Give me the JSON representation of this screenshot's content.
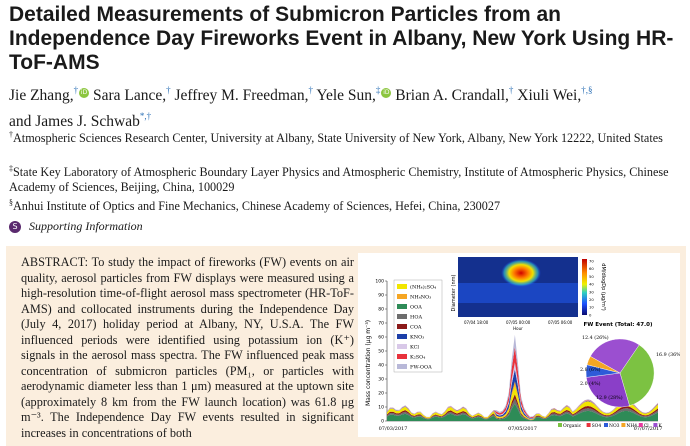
{
  "paper": {
    "title": "Detailed Measurements of Submicron Particles from an Independence Day Fireworks Event in Albany, New York Using HR-ToF-AMS",
    "authors": [
      {
        "name": "Jie Zhang,",
        "aff": "†",
        "orcid": true
      },
      {
        "name": "Sara Lance,",
        "aff": "†",
        "orcid": false
      },
      {
        "name": "Jeffrey M. Freedman,",
        "aff": "†",
        "orcid": false
      },
      {
        "name": "Yele Sun,",
        "aff": "‡",
        "orcid": true
      },
      {
        "name": "Brian A. Crandall,",
        "aff": "†",
        "orcid": false
      },
      {
        "name": "Xiuli Wei,",
        "aff": "†,§",
        "orcid": false
      },
      {
        "name": "and James J. Schwab",
        "aff": "*,†",
        "orcid": false
      }
    ],
    "affiliations": [
      {
        "mark": "†",
        "text": "Atmospheric Sciences Research Center, University at Albany, State University of New York, Albany, New York 12222, United States"
      },
      {
        "mark": "‡",
        "text": "State Key Laboratory of Atmospheric Boundary Layer Physics and Atmospheric Chemistry, Institute of Atmospheric Physics, Chinese Academy of Sciences, Beijing, China, 100029"
      },
      {
        "mark": "§",
        "text": "Anhui Institute of Optics and Fine Mechanics, Chinese Academy of Sciences, Hefei, China, 230027"
      }
    ],
    "supporting_information": "Supporting Information",
    "si_icon": "supporting-info-icon",
    "abstract_label": "ABSTRACT:",
    "abstract_text": "To study the impact of fireworks (FW) events on air quality, aerosol particles from FW displays were measured using a high-resolution time-of-flight aerosol mass spectrometer (HR-ToF-AMS) and collocated instruments during the Independence Day (July 4, 2017) holiday period at Albany, NY, U.S.A. The FW influenced periods were identified using potassium ion (K⁺) signals in the aerosol mass spectra. The FW influenced peak mass concentration of submicron particles (PM₁, or particles with aerodynamic diameter less than 1 μm) measured at the uptown site (approximately 8 km from the FW launch location) was 61.8 μg m⁻³. The Independence Day FW events resulted in significant increases in concentrations of both",
    "abstract_box_color": "#fbeede"
  },
  "toc_graphic": {
    "ylabel": "Mass concentration (μg m⁻³)",
    "yticks": [
      "0",
      "10",
      "20",
      "30",
      "40",
      "50",
      "60",
      "70",
      "80",
      "90",
      "100"
    ],
    "xticks": [
      "07/03/2017",
      "07/05/2017",
      "07/07/2017"
    ],
    "legend": [
      "(NH₄)₂SO₄",
      "NH₄NO₃",
      "OOA",
      "HOA",
      "COA",
      "KNO₃",
      "KCl",
      "K₂SO₄",
      "FW-OOA"
    ],
    "legend_colors": [
      "#f2e600",
      "#f5a623",
      "#2e8b57",
      "#6d6d6d",
      "#8b1a1a",
      "#1c3fa8",
      "#d8c8e8",
      "#e8323c",
      "#b8b8d8"
    ],
    "heatmap_ylabel": "Diameter (nm)",
    "heatmap_cbar_label": "dM/dlogDp (μg/m³)",
    "heatmap_cbar_ticks": [
      "70",
      "60",
      "50",
      "40",
      "30",
      "20",
      "10",
      "0"
    ],
    "heatmap_xticks": [
      "07/04 18:00",
      "07/05 00:00",
      "07/05 06:00"
    ],
    "heatmap_xlabel": "Hour",
    "pie_title": "FW Event (Total: 47.0)",
    "pie_labels": [
      "12.4 (26%)",
      "16.9 (36%)",
      "2.8 (6%)",
      "2.0 (4%)",
      "12.9 (28%)"
    ],
    "pie_legend": [
      "Organic",
      "SO4",
      "NO3",
      "NH4",
      "Cl",
      "K"
    ],
    "pie_legend_colors": [
      "#7cc242",
      "#e8323c",
      "#2e5bd8",
      "#f5a623",
      "#e83aa0",
      "#9b4fd0"
    ]
  },
  "chart_data": {
    "type": "area",
    "title": "",
    "xlabel": "",
    "ylabel": "Mass concentration (μg m⁻³)",
    "ylim": [
      0,
      100
    ],
    "x": [
      "07/03/2017",
      "07/05/2017",
      "07/07/2017"
    ],
    "peak": {
      "x": "07/05/2017",
      "value": 61.8
    },
    "pie": {
      "title": "FW Event (Total: 47.0)",
      "slices": [
        {
          "label": "Organic",
          "value": 16.9
        },
        {
          "label": "K",
          "value": 12.4
        },
        {
          "label": "SO4",
          "value": 12.9
        },
        {
          "label": "NO3",
          "value": 2.8
        },
        {
          "label": "NH4",
          "value": 2.0
        }
      ]
    }
  }
}
